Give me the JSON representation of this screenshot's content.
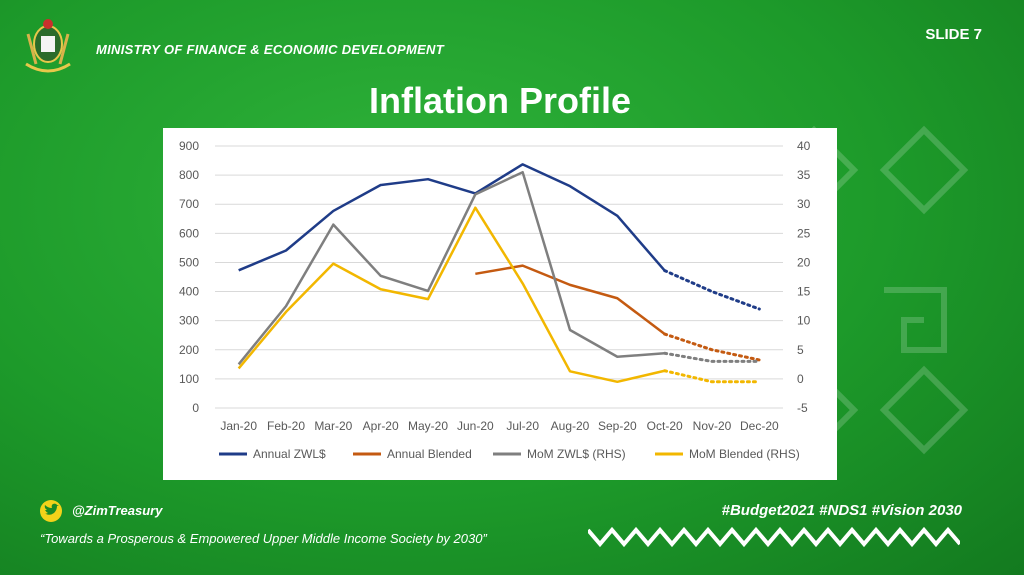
{
  "header": {
    "ministry": "MINISTRY OF FINANCE & ECONOMIC DEVELOPMENT",
    "slide_label": "SLIDE 7",
    "title": "Inflation Profile"
  },
  "footer": {
    "handle": "@ZimTreasury",
    "motto": "“Towards a Prosperous & Empowered Upper Middle Income Society by 2030”",
    "hashtags": "#Budget2021 #NDS1 #Vision 2030"
  },
  "colors": {
    "background": "#1f9a2c",
    "annual_zwl": "#1f3c88",
    "annual_blended": "#c45a11",
    "mom_zwl": "#7f7f7f",
    "mom_blended": "#f2b700"
  },
  "chart_data": {
    "type": "line",
    "title": "",
    "categories": [
      "Jan-20",
      "Feb-20",
      "Mar-20",
      "Apr-20",
      "May-20",
      "Jun-20",
      "Jul-20",
      "Aug-20",
      "Sep-20",
      "Oct-20",
      "Nov-20",
      "Dec-20"
    ],
    "y_left": {
      "min": 0,
      "max": 900,
      "ticks": [
        "0",
        "100",
        "200",
        "300",
        "400",
        "500",
        "600",
        "700",
        "800",
        "900"
      ]
    },
    "y_right": {
      "min": -5,
      "max": 40,
      "ticks": [
        "-5",
        "0",
        "5",
        "10",
        "15",
        "20",
        "25",
        "30",
        "35",
        "40"
      ]
    },
    "grid": true,
    "legend_position": "bottom",
    "series": [
      {
        "name": "Annual ZWL$",
        "axis": "left",
        "color": "#1f3c88",
        "values": [
          473,
          541,
          677,
          766,
          786,
          737,
          837,
          762,
          660,
          472,
          400,
          340
        ],
        "projected_from": 9
      },
      {
        "name": "Annual Blended",
        "axis": "left",
        "color": "#c45a11",
        "values": [
          null,
          null,
          null,
          null,
          null,
          461,
          489,
          423,
          377,
          254,
          200,
          165
        ],
        "projected_from": 9
      },
      {
        "name": "MoM ZWL$ (RHS)",
        "axis": "right",
        "color": "#7f7f7f",
        "values": [
          2.5,
          12.5,
          26.5,
          17.7,
          15.1,
          31.7,
          35.5,
          8.4,
          3.8,
          4.4,
          3.0,
          3.0
        ],
        "projected_from": 9
      },
      {
        "name": "MoM Blended (RHS)",
        "axis": "right",
        "color": "#f2b700",
        "values": [
          1.8,
          11.5,
          19.8,
          15.4,
          13.7,
          29.4,
          16.4,
          1.3,
          -0.5,
          1.4,
          -0.5,
          -0.5
        ],
        "projected_from": 9
      }
    ]
  }
}
